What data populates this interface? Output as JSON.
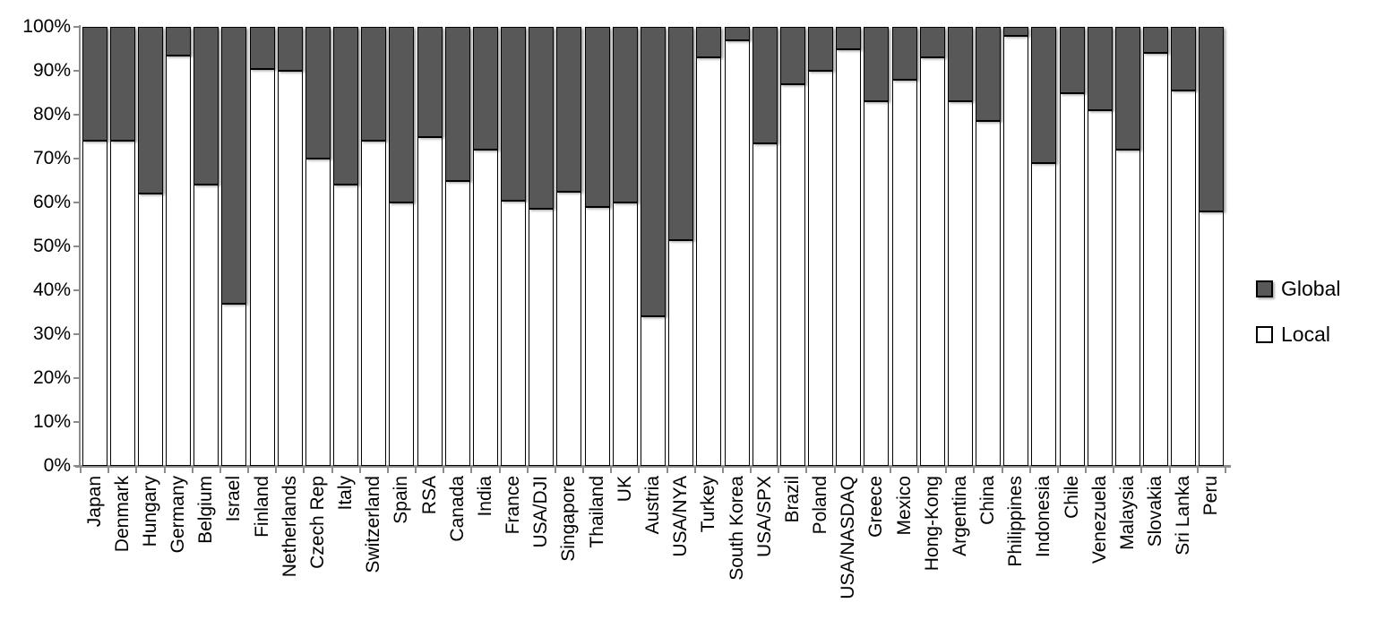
{
  "chart_data": {
    "type": "bar",
    "stacked": true,
    "stacking": "percent",
    "title": "",
    "xlabel": "",
    "ylabel": "",
    "ylim": [
      0,
      100
    ],
    "grid": false,
    "legend_position": "right",
    "y_ticks": [
      "0%",
      "10%",
      "20%",
      "30%",
      "40%",
      "50%",
      "60%",
      "70%",
      "80%",
      "90%",
      "100%"
    ],
    "categories": [
      "Japan",
      "Denmark",
      "Hungary",
      "Germany",
      "Belgium",
      "Israel",
      "Finland",
      "Netherlands",
      "Czech Rep",
      "Italy",
      "Switzerland",
      "Spain",
      "RSA",
      "Canada",
      "India",
      "France",
      "USA/DJI",
      "Singapore",
      "Thailand",
      "UK",
      "Austria",
      "USA/NYA",
      "Turkey",
      "South Korea",
      "USA/SPX",
      "Brazil",
      "Poland",
      "USA/NASDAQ",
      "Greece",
      "Mexico",
      "Hong-Kong",
      "Argentina",
      "China",
      "Philippines",
      "Indonesia",
      "Chile",
      "Venezuela",
      "Malaysia",
      "Slovakia",
      "Sri Lanka",
      "Peru"
    ],
    "series": [
      {
        "name": "Global",
        "color": "#585858",
        "values": [
          26,
          26,
          38,
          6.5,
          36,
          63,
          9.5,
          10,
          30,
          36,
          26,
          40,
          25,
          35,
          28,
          39.5,
          41.5,
          37.5,
          41,
          40,
          66,
          48.5,
          7,
          3,
          26.5,
          13,
          10,
          5,
          17,
          12,
          7,
          17,
          21.5,
          2,
          31,
          15,
          19,
          28,
          6,
          14.5,
          42
        ]
      },
      {
        "name": "Local",
        "color": "#ffffff",
        "values": [
          74,
          74,
          62,
          93.5,
          64,
          37,
          90.5,
          90,
          70,
          64,
          74,
          60,
          75,
          65,
          72,
          60.5,
          58.5,
          62.5,
          59,
          60,
          34,
          51.5,
          93,
          97,
          73.5,
          87,
          90,
          95,
          83,
          88,
          93,
          83,
          78.5,
          98,
          69,
          85,
          81,
          72,
          94,
          85.5,
          58
        ]
      }
    ]
  },
  "legend": {
    "items": [
      {
        "label": "Global",
        "swatch_color": "#585858"
      },
      {
        "label": "Local",
        "swatch_color": "#ffffff"
      }
    ]
  },
  "colors": {
    "global_fill": "#585858",
    "local_fill": "#ffffff",
    "bar_border": "#000000",
    "axis": "#8c8c8c",
    "text": "#000000",
    "background": "#ffffff"
  }
}
